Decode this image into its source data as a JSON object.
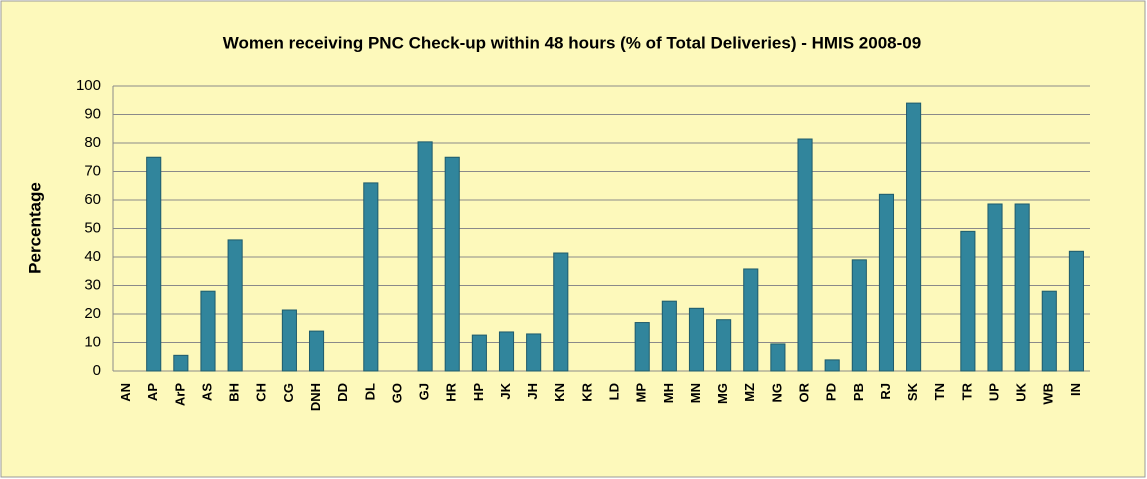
{
  "chart_data": {
    "type": "bar",
    "title": "Women receiving PNC Check-up within 48 hours (% of Total Deliveries) - HMIS 2008-09",
    "y_label": "Percentage",
    "categories": [
      "AN",
      "AP",
      "ArP",
      "AS",
      "BH",
      "CH",
      "CG",
      "DNH",
      "DD",
      "DL",
      "GO",
      "GJ",
      "HR",
      "HP",
      "JK",
      "JH",
      "KN",
      "KR",
      "LD",
      "MP",
      "MH",
      "MN",
      "MG",
      "MZ",
      "NG",
      "OR",
      "PD",
      "PB",
      "RJ",
      "SK",
      "TN",
      "TR",
      "UP",
      "UK",
      "WB",
      "IN"
    ],
    "values": [
      null,
      75,
      5.5,
      28,
      46,
      null,
      21.4,
      14,
      null,
      66,
      null,
      80.4,
      75,
      12.6,
      13.7,
      13,
      41.4,
      null,
      null,
      17,
      24.5,
      22,
      18,
      35.8,
      9.5,
      81.4,
      3.9,
      39,
      62,
      94,
      null,
      49,
      58.6,
      58.6,
      28,
      42
    ],
    "color": "#31859c",
    "ylim": [
      0,
      100
    ],
    "yticks": [
      0,
      10,
      20,
      30,
      40,
      50,
      60,
      70,
      80,
      90,
      100
    ],
    "grid": true
  }
}
